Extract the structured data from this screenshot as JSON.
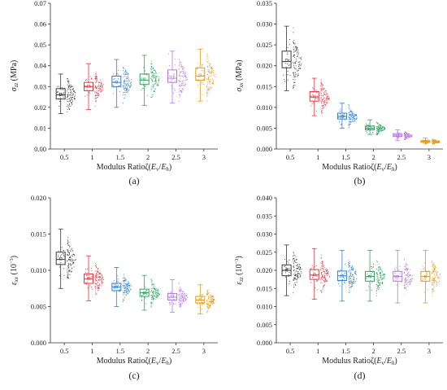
{
  "figure": {
    "x_categories": [
      "0.5",
      "1",
      "1.5",
      "2",
      "2.5",
      "3"
    ],
    "xlabel": "Modulus Ratioζ(Eᵥ/Eₕ)",
    "series_colors": [
      "#3a3a3a",
      "#e8323c",
      "#2f7fd4",
      "#23a85a",
      "#b47be0",
      "#e09a1c"
    ]
  },
  "chart_data": [
    {
      "type": "box",
      "panel": "(a)",
      "caption": "(a)",
      "ylabel": "σzz (MPa)",
      "xlabel": "Modulus Ratioζ(Ev/Eh)",
      "ylim": [
        0,
        0.07
      ],
      "yticks": [
        "0.00",
        "0.01",
        "0.02",
        "0.03",
        "0.04",
        "0.05",
        "0.06",
        "0.07"
      ],
      "categories": [
        "0.5",
        "1",
        "1.5",
        "2",
        "2.5",
        "3"
      ],
      "boxes": [
        {
          "category": "0.5",
          "min": 0.017,
          "q1": 0.024,
          "median": 0.026,
          "mean": 0.0262,
          "q3": 0.029,
          "max": 0.036
        },
        {
          "category": "1",
          "min": 0.019,
          "q1": 0.028,
          "median": 0.03,
          "mean": 0.0302,
          "q3": 0.032,
          "max": 0.041
        },
        {
          "category": "1.5",
          "min": 0.02,
          "q1": 0.03,
          "median": 0.032,
          "mean": 0.0322,
          "q3": 0.035,
          "max": 0.043
        },
        {
          "category": "2",
          "min": 0.021,
          "q1": 0.031,
          "median": 0.033,
          "mean": 0.0335,
          "q3": 0.036,
          "max": 0.045
        },
        {
          "category": "2.5",
          "min": 0.022,
          "q1": 0.032,
          "median": 0.034,
          "mean": 0.0345,
          "q3": 0.038,
          "max": 0.047
        },
        {
          "category": "3",
          "min": 0.023,
          "q1": 0.033,
          "median": 0.035,
          "mean": 0.0355,
          "q3": 0.039,
          "max": 0.048
        }
      ]
    },
    {
      "type": "box",
      "panel": "(b)",
      "caption": "(b)",
      "ylabel": "σxx (MPa)",
      "xlabel": "Modulus Ratioζ(Ev/Eh)",
      "ylim": [
        0,
        0.035
      ],
      "yticks": [
        "0.000",
        "0.005",
        "0.010",
        "0.015",
        "0.020",
        "0.025",
        "0.030",
        "0.035"
      ],
      "categories": [
        "0.5",
        "1",
        "1.5",
        "2",
        "2.5",
        "3"
      ],
      "boxes": [
        {
          "category": "0.5",
          "min": 0.014,
          "q1": 0.0195,
          "median": 0.021,
          "mean": 0.0213,
          "q3": 0.0235,
          "max": 0.0295
        },
        {
          "category": "1",
          "min": 0.008,
          "q1": 0.0115,
          "median": 0.0125,
          "mean": 0.0126,
          "q3": 0.0138,
          "max": 0.017
        },
        {
          "category": "1.5",
          "min": 0.005,
          "q1": 0.0072,
          "median": 0.0078,
          "mean": 0.0079,
          "q3": 0.0086,
          "max": 0.011
        },
        {
          "category": "2",
          "min": 0.0035,
          "q1": 0.0046,
          "median": 0.005,
          "mean": 0.0051,
          "q3": 0.0055,
          "max": 0.007
        },
        {
          "category": "2.5",
          "min": 0.002,
          "q1": 0.003,
          "median": 0.0033,
          "mean": 0.0033,
          "q3": 0.0036,
          "max": 0.0046
        },
        {
          "category": "3",
          "min": 0.0012,
          "q1": 0.0016,
          "median": 0.0018,
          "mean": 0.0018,
          "q3": 0.002,
          "max": 0.0026
        }
      ]
    },
    {
      "type": "box",
      "panel": "(c)",
      "caption": "(c)",
      "ylabel": "εxx (10⁻³)",
      "xlabel": "Modulus Ratioζ(Ev/Eh)",
      "ylim": [
        0,
        0.02
      ],
      "yticks": [
        "0.000",
        "0.005",
        "0.010",
        "0.015",
        "0.020"
      ],
      "categories": [
        "0.5",
        "1",
        "1.5",
        "2",
        "2.5",
        "3"
      ],
      "boxes": [
        {
          "category": "0.5",
          "min": 0.0075,
          "q1": 0.0108,
          "median": 0.0115,
          "mean": 0.0116,
          "q3": 0.0125,
          "max": 0.0157
        },
        {
          "category": "1",
          "min": 0.0058,
          "q1": 0.0082,
          "median": 0.0088,
          "mean": 0.0089,
          "q3": 0.0095,
          "max": 0.012
        },
        {
          "category": "1.5",
          "min": 0.005,
          "q1": 0.0072,
          "median": 0.0077,
          "mean": 0.0077,
          "q3": 0.0082,
          "max": 0.0104
        },
        {
          "category": "2",
          "min": 0.0045,
          "q1": 0.0064,
          "median": 0.0069,
          "mean": 0.0069,
          "q3": 0.0074,
          "max": 0.0093
        },
        {
          "category": "2.5",
          "min": 0.0042,
          "q1": 0.0059,
          "median": 0.0063,
          "mean": 0.0064,
          "q3": 0.0068,
          "max": 0.0087
        },
        {
          "category": "3",
          "min": 0.004,
          "q1": 0.0055,
          "median": 0.0059,
          "mean": 0.006,
          "q3": 0.0064,
          "max": 0.008
        }
      ]
    },
    {
      "type": "box",
      "panel": "(d)",
      "caption": "(d)",
      "ylabel": "εzz (10⁻³)",
      "xlabel": "Modulus Ratioζ(Ev/Eh)",
      "ylim": [
        0,
        0.04
      ],
      "yticks": [
        "0.000",
        "0.005",
        "0.010",
        "0.015",
        "0.020",
        "0.025",
        "0.030",
        "0.035",
        "0.040"
      ],
      "categories": [
        "0.5",
        "1",
        "1.5",
        "2",
        "2.5",
        "3"
      ],
      "boxes": [
        {
          "category": "0.5",
          "min": 0.013,
          "q1": 0.0185,
          "median": 0.02,
          "mean": 0.0201,
          "q3": 0.0215,
          "max": 0.027
        },
        {
          "category": "1",
          "min": 0.012,
          "q1": 0.0175,
          "median": 0.0187,
          "mean": 0.0188,
          "q3": 0.0202,
          "max": 0.026
        },
        {
          "category": "1.5",
          "min": 0.0115,
          "q1": 0.0172,
          "median": 0.0185,
          "mean": 0.0185,
          "q3": 0.0198,
          "max": 0.0255
        },
        {
          "category": "2",
          "min": 0.0115,
          "q1": 0.017,
          "median": 0.0183,
          "mean": 0.0183,
          "q3": 0.0197,
          "max": 0.0255
        },
        {
          "category": "2.5",
          "min": 0.011,
          "q1": 0.017,
          "median": 0.0183,
          "mean": 0.0183,
          "q3": 0.0197,
          "max": 0.0255
        },
        {
          "category": "3",
          "min": 0.011,
          "q1": 0.017,
          "median": 0.0183,
          "mean": 0.0183,
          "q3": 0.0197,
          "max": 0.0255
        }
      ]
    }
  ]
}
